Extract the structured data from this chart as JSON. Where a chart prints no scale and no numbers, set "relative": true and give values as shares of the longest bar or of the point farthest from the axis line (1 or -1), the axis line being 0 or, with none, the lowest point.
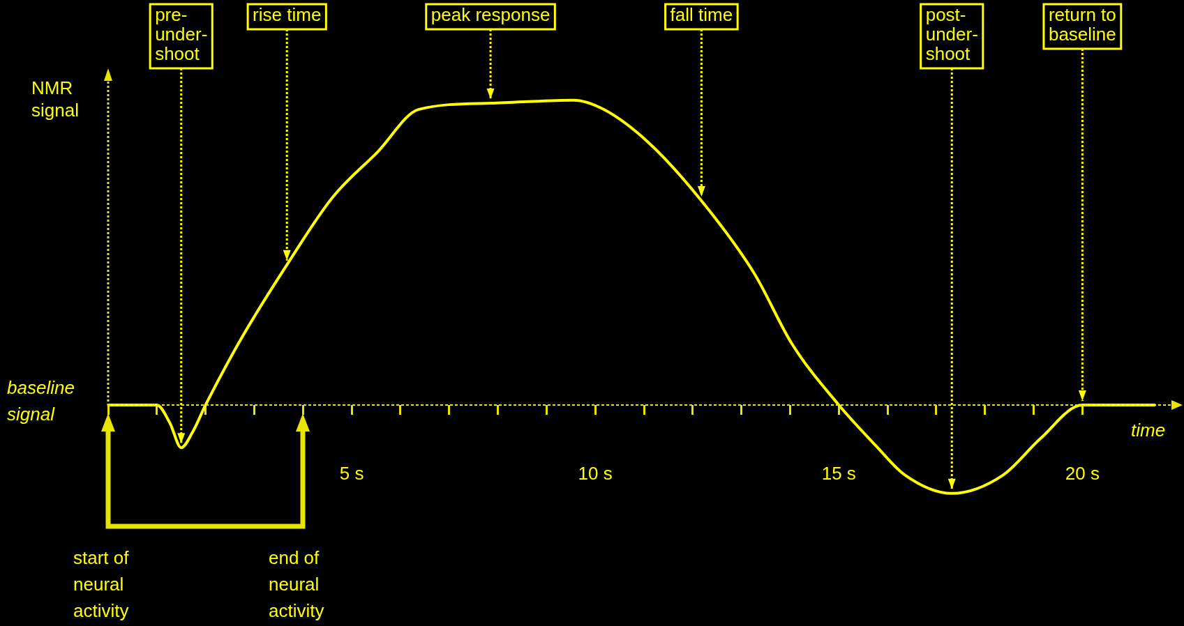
{
  "chart_data": {
    "type": "line",
    "relative": true,
    "xlabel": "time",
    "ylabel": "NMR signal",
    "xlim": [
      0,
      22
    ],
    "xticks": [
      {
        "value": 0,
        "label": null
      },
      {
        "value": 1,
        "label": null
      },
      {
        "value": 2,
        "label": null
      },
      {
        "value": 3,
        "label": null
      },
      {
        "value": 4,
        "label": null
      },
      {
        "value": 5,
        "label": "5 s"
      },
      {
        "value": 6,
        "label": null
      },
      {
        "value": 7,
        "label": null
      },
      {
        "value": 8,
        "label": null
      },
      {
        "value": 9,
        "label": null
      },
      {
        "value": 10,
        "label": "10 s"
      },
      {
        "value": 11,
        "label": null
      },
      {
        "value": 12,
        "label": null
      },
      {
        "value": 13,
        "label": null
      },
      {
        "value": 14,
        "label": null
      },
      {
        "value": 15,
        "label": "15 s"
      },
      {
        "value": 16,
        "label": null
      },
      {
        "value": 17,
        "label": null
      },
      {
        "value": 18,
        "label": null
      },
      {
        "value": 19,
        "label": null
      },
      {
        "value": 20,
        "label": "20 s"
      }
    ],
    "x": [
      0,
      1,
      1.27,
      1.5,
      1.73,
      2,
      2.74,
      3.67,
      4.6,
      5.53,
      6.38,
      7.85,
      9.55,
      10.17,
      11.1,
      12.18,
      13.27,
      14.04,
      15,
      15.74,
      16.36,
      17.32,
      18.37,
      19.14,
      20,
      21.5
    ],
    "series": [
      {
        "color": "#ffff00",
        "values": [
          0,
          0,
          -0.06,
          -0.14,
          -0.09,
          0,
          0.22,
          0.46,
          0.68,
          0.83,
          0.97,
          0.99,
          1,
          0.97,
          0.86,
          0.67,
          0.43,
          0.2,
          0,
          -0.13,
          -0.23,
          -0.29,
          -0.23,
          -0.11,
          0,
          0
        ]
      }
    ],
    "ref_lines": [
      {
        "axis": "y",
        "value": 0,
        "color": "#e6e600",
        "line_style": "dashed"
      }
    ],
    "grid": false,
    "legend": false,
    "annotations": [
      "baseline signal",
      {
        "text": "pre-under-shoot",
        "x": 1.5,
        "y": -0.14
      },
      {
        "text": "rise time",
        "x": 3.67,
        "y": 0.46
      },
      {
        "text": "peak response",
        "x": 7.85,
        "y": 0.99
      },
      {
        "text": "fall time",
        "x": 12.18,
        "y": 0.67
      },
      {
        "text": "post-under-shoot",
        "x": 17.32,
        "y": -0.29
      },
      {
        "text": "return to baseline",
        "x": 20,
        "y": 0
      },
      "start of neural activity",
      "end of neural activity"
    ]
  }
}
